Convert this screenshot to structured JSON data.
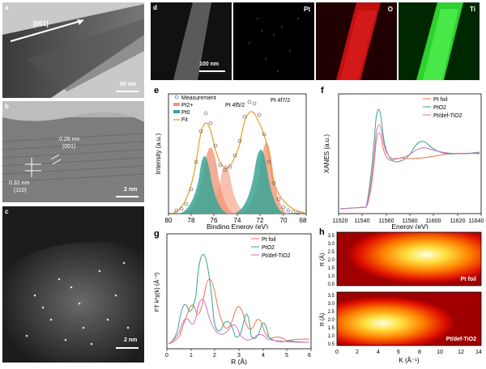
{
  "panels": {
    "a": {
      "letter": "a",
      "direction": "[001]",
      "scale": "50 nm"
    },
    "b": {
      "letter": "b",
      "d1": "0.28 nm",
      "p1": "(001)",
      "d2": "0.32 nm",
      "p2": "(110)",
      "scale": "2 nm"
    },
    "c": {
      "letter": "c",
      "scale": "2 nm"
    },
    "d": {
      "letter": "d",
      "scale": "100 nm",
      "maps": [
        "Pt",
        "O",
        "Ti"
      ]
    },
    "e": {
      "letter": "e",
      "legend": [
        "Measurement",
        "Pt2+",
        "Pt0",
        "Fit"
      ],
      "peak1": "Pt 4f5/2",
      "peak2": "Pt 4f7/2",
      "ylabel": "Intensity (a.u.)",
      "xlabel": "Binding Energy (eV)",
      "xticks": [
        "80",
        "78",
        "76",
        "74",
        "72",
        "70",
        "68"
      ]
    },
    "f": {
      "letter": "f",
      "legend": [
        "Pt foil",
        "PtO2",
        "Pt/def-TiO2"
      ],
      "ylabel": "XANES (a.u.)",
      "xlabel": "Energy (eV)",
      "xticks": [
        "11520",
        "11540",
        "11560",
        "11580",
        "11600",
        "11620",
        "11640"
      ]
    },
    "g": {
      "letter": "g",
      "legend": [
        "Pt foil",
        "PtO2",
        "Pt/def-TiO2"
      ],
      "ylabel": "FT k²χ(k) (Å⁻³)",
      "xlabel": "R (Å)",
      "xticks": [
        "0",
        "1",
        "2",
        "3",
        "4",
        "5",
        "6"
      ]
    },
    "h": {
      "letter": "h",
      "ylabel": "R (Å)",
      "xlabel": "K (Å⁻¹)",
      "top": "Pt foil",
      "bottom": "Pt/def-TiO2",
      "yticks": [
        "0.5",
        "1.0",
        "1.5",
        "2.0",
        "2.5",
        "3.0",
        "3.5"
      ],
      "xticks": [
        "0",
        "2",
        "4",
        "6",
        "8",
        "10",
        "12",
        "14"
      ]
    }
  },
  "colors": {
    "pt2": "#f08060",
    "pt0": "#3aa595",
    "fit": "#e0a020",
    "foil": "#f07050",
    "pto2": "#3aa090",
    "def": "#d070c0"
  }
}
